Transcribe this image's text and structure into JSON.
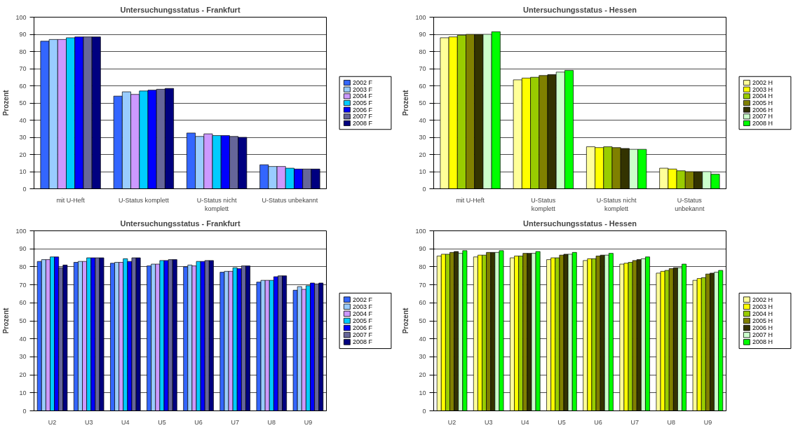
{
  "chart_data": [
    {
      "type": "bar",
      "title": "Untersuchungsstatus - Frankfurt",
      "ylabel": "Prozent",
      "categories": [
        "mit U-Heft",
        "U-Status komplett",
        "U-Status nicht komplett",
        "U-Status unbekannt"
      ],
      "ylim": [
        0,
        100
      ],
      "yticks": [
        0,
        10,
        20,
        30,
        40,
        50,
        60,
        70,
        80,
        90,
        100
      ],
      "grid": "y",
      "legend": "right",
      "series": [
        {
          "name": "2002 F",
          "color": "#3366ff",
          "values": [
            86,
            54,
            32.5,
            14
          ]
        },
        {
          "name": "2003 F",
          "color": "#99ccff",
          "values": [
            87,
            56.5,
            30.5,
            13
          ]
        },
        {
          "name": "2004 F",
          "color": "#cc99ff",
          "values": [
            87,
            55,
            32,
            13
          ]
        },
        {
          "name": "2005 F",
          "color": "#00ccff",
          "values": [
            88,
            57,
            31,
            12
          ]
        },
        {
          "name": "2006 F",
          "color": "#0000ff",
          "values": [
            88.5,
            57.5,
            31,
            11.5
          ]
        },
        {
          "name": "2007 F",
          "color": "#666699",
          "values": [
            88.5,
            58,
            30.5,
            11.5
          ]
        },
        {
          "name": "2008 F",
          "color": "#000080",
          "values": [
            88.5,
            58.5,
            30,
            11.5
          ]
        }
      ]
    },
    {
      "type": "bar",
      "title": "Untersuchungsstatus - Hessen",
      "ylabel": "Prozent",
      "categories": [
        "mit U-Heft",
        "U-Status komplett",
        "U-Status nicht komplett",
        "U-Status unbekannt"
      ],
      "ylim": [
        0,
        100
      ],
      "yticks": [
        0,
        10,
        20,
        30,
        40,
        50,
        60,
        70,
        80,
        90,
        100
      ],
      "grid": "y",
      "legend": "right",
      "series": [
        {
          "name": "2002 H",
          "color": "#ffff99",
          "values": [
            88,
            63.5,
            24.5,
            12
          ]
        },
        {
          "name": "2003 H",
          "color": "#ffff00",
          "values": [
            88.5,
            64.5,
            24,
            11.5
          ]
        },
        {
          "name": "2004 H",
          "color": "#99cc00",
          "values": [
            89.5,
            65,
            24.5,
            10.5
          ]
        },
        {
          "name": "2005 H",
          "color": "#808000",
          "values": [
            90,
            66,
            24,
            10
          ]
        },
        {
          "name": "2006 H",
          "color": "#333300",
          "values": [
            90,
            66.5,
            23.5,
            10
          ]
        },
        {
          "name": "2007 H",
          "color": "#ccffcc",
          "values": [
            90,
            68,
            23,
            10
          ]
        },
        {
          "name": "2008 H",
          "color": "#00ff00",
          "values": [
            91.5,
            69,
            23,
            8.5
          ]
        }
      ]
    },
    {
      "type": "bar",
      "title": "Untersuchungsstatus - Frankfurt",
      "ylabel": "Prozent",
      "categories": [
        "U2",
        "U3",
        "U4",
        "U5",
        "U6",
        "U7",
        "U8",
        "U9"
      ],
      "ylim": [
        0,
        100
      ],
      "yticks": [
        0,
        10,
        20,
        30,
        40,
        50,
        60,
        70,
        80,
        90,
        100
      ],
      "grid": "y",
      "legend": "right",
      "series": [
        {
          "name": "2002 F",
          "color": "#3366ff",
          "values": [
            83,
            82.5,
            82,
            80.5,
            80,
            77,
            71.5,
            67
          ]
        },
        {
          "name": "2003 F",
          "color": "#99ccff",
          "values": [
            84,
            83,
            82.5,
            81.5,
            81,
            77.5,
            72.5,
            69
          ]
        },
        {
          "name": "2004 F",
          "color": "#cc99ff",
          "values": [
            84,
            83,
            82.5,
            81.5,
            80.5,
            77.5,
            72.5,
            67.5
          ]
        },
        {
          "name": "2005 F",
          "color": "#00ccff",
          "values": [
            85.5,
            85,
            84.5,
            83.5,
            83,
            79.5,
            72.5,
            69.5
          ]
        },
        {
          "name": "2006 F",
          "color": "#0000ff",
          "values": [
            85.5,
            85,
            83,
            83.5,
            83,
            79,
            74.5,
            71
          ]
        },
        {
          "name": "2007 F",
          "color": "#666699",
          "values": [
            79.5,
            85,
            85,
            84,
            83.5,
            80.5,
            75,
            70.5
          ]
        },
        {
          "name": "2008 F",
          "color": "#000080",
          "values": [
            81,
            85,
            85,
            84,
            83.5,
            80.5,
            75,
            71
          ]
        }
      ]
    },
    {
      "type": "bar",
      "title": "Untersuchungsstatus - Hessen",
      "ylabel": "Prozent",
      "categories": [
        "U2",
        "U3",
        "U4",
        "U5",
        "U6",
        "U7",
        "U8",
        "U9"
      ],
      "ylim": [
        0,
        100
      ],
      "yticks": [
        0,
        10,
        20,
        30,
        40,
        50,
        60,
        70,
        80,
        90,
        100
      ],
      "grid": "y",
      "legend": "right",
      "series": [
        {
          "name": "2002 H",
          "color": "#ffff99",
          "values": [
            86,
            85.5,
            85,
            84,
            83.5,
            81.5,
            76.5,
            72.5
          ]
        },
        {
          "name": "2003 H",
          "color": "#ffff00",
          "values": [
            87,
            86.5,
            86,
            85,
            84.5,
            82,
            77.5,
            73.5
          ]
        },
        {
          "name": "2004 H",
          "color": "#99cc00",
          "values": [
            87,
            86.5,
            86,
            85,
            84.5,
            82.5,
            78,
            74
          ]
        },
        {
          "name": "2005 H",
          "color": "#808000",
          "values": [
            88,
            88,
            87.5,
            86.5,
            86,
            83.5,
            79,
            76
          ]
        },
        {
          "name": "2006 H",
          "color": "#333300",
          "values": [
            88.5,
            88,
            87.5,
            87,
            86.5,
            84,
            79.5,
            76.5
          ]
        },
        {
          "name": "2007 H",
          "color": "#ccffcc",
          "values": [
            87.5,
            88,
            87.5,
            87,
            86.5,
            84.5,
            79.5,
            77
          ]
        },
        {
          "name": "2008 H",
          "color": "#00ff00",
          "values": [
            89,
            89,
            88.5,
            88,
            87.5,
            85.5,
            81.5,
            78
          ]
        }
      ]
    }
  ]
}
